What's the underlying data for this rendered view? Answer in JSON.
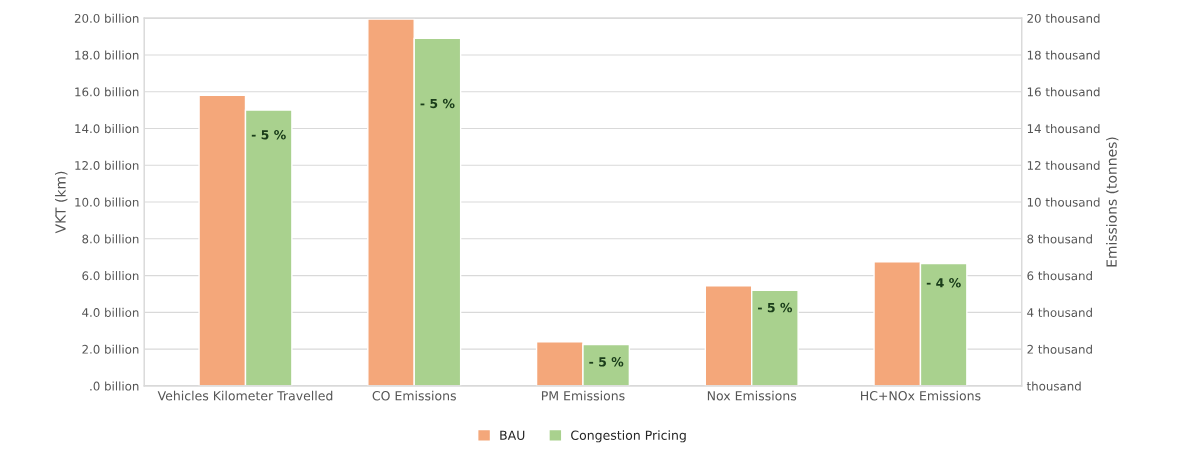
{
  "chart_data": {
    "type": "bar",
    "categories": [
      "Vehicles Kilometer Travelled",
      "CO Emissions",
      "PM Emissions",
      "Nox Emissions",
      "HC+NOx Emissions"
    ],
    "series": [
      {
        "name": "BAU",
        "color": "#f4a77a",
        "values": [
          15.8,
          19.95,
          2.4,
          5.45,
          6.75
        ]
      },
      {
        "name": "Congestion Pricing",
        "color": "#a9d18e",
        "values": [
          15.0,
          18.9,
          2.25,
          5.2,
          6.65
        ]
      }
    ],
    "ylabel": "VKT (km)",
    "y2label": "Emissions (tonnes)",
    "ylim": [
      0,
      20
    ],
    "yticks": [
      {
        "value": 0,
        "label": ".0 billion"
      },
      {
        "value": 2,
        "label": "2.0 billion"
      },
      {
        "value": 4,
        "label": "4.0 billion"
      },
      {
        "value": 6,
        "label": "6.0 billion"
      },
      {
        "value": 8,
        "label": "8.0 billion"
      },
      {
        "value": 10,
        "label": "10.0 billion"
      },
      {
        "value": 12,
        "label": "12.0 billion"
      },
      {
        "value": 14,
        "label": "14.0 billion"
      },
      {
        "value": 16,
        "label": "16.0 billion"
      },
      {
        "value": 18,
        "label": "18.0 billion"
      },
      {
        "value": 20,
        "label": "20.0 billion"
      }
    ],
    "y2lim": [
      0,
      20
    ],
    "y2ticks": [
      {
        "value": 0,
        "label": "thousand"
      },
      {
        "value": 2,
        "label": "2 thousand"
      },
      {
        "value": 4,
        "label": "4 thousand"
      },
      {
        "value": 6,
        "label": "6 thousand"
      },
      {
        "value": 8,
        "label": "8 thousand"
      },
      {
        "value": 10,
        "label": "10 thousand"
      },
      {
        "value": 12,
        "label": "12 thousand"
      },
      {
        "value": 14,
        "label": "14 thousand"
      },
      {
        "value": 16,
        "label": "16 thousand"
      },
      {
        "value": 18,
        "label": "18 thousand"
      },
      {
        "value": 20,
        "label": "20 thousand"
      }
    ],
    "annotations": [
      {
        "text": "- 5 %",
        "x": "Vehicles Kilometer Travelled",
        "y": 13.6
      },
      {
        "text": "- 5 %",
        "x": "CO Emissions",
        "y": 15.3
      },
      {
        "text": "- 5 %",
        "x": "PM Emissions",
        "y": 1.25
      },
      {
        "text": "- 5 %",
        "x": "Nox Emissions",
        "y": 4.2
      },
      {
        "text": "- 4 %",
        "x": "HC+NOx Emissions",
        "y": 5.55
      }
    ],
    "grid": "y",
    "legend": "bottom"
  }
}
